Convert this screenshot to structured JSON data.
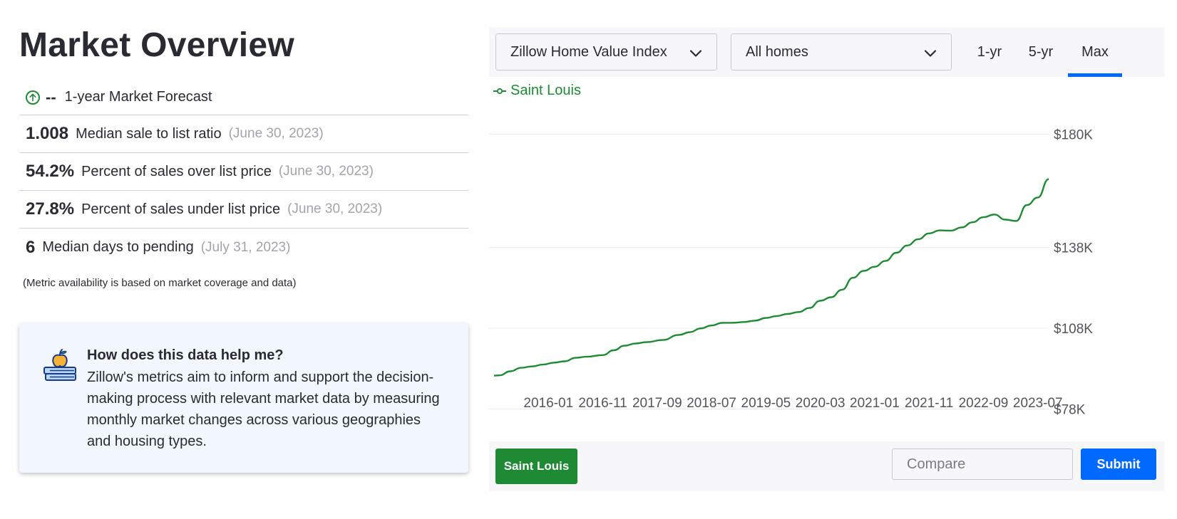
{
  "page": {
    "title": "Market Overview"
  },
  "forecast": {
    "value": "--",
    "label": "1-year Market Forecast"
  },
  "metrics": [
    {
      "value": "1.008",
      "label": "Median sale to list ratio",
      "date": "(June 30, 2023)"
    },
    {
      "value": "54.2%",
      "label": "Percent of sales over list price",
      "date": "(June 30, 2023)"
    },
    {
      "value": "27.8%",
      "label": "Percent of sales under list price",
      "date": "(June 30, 2023)"
    },
    {
      "value": "6",
      "label": "Median days to pending",
      "date": "(July 31, 2023)"
    }
  ],
  "note": "(Metric availability is based on market coverage and data)",
  "help": {
    "title": "How does this data help me?",
    "body": "Zillow's metrics aim to inform and support the decision-making process with relevant market data by measuring monthly market changes across various geographies and housing types."
  },
  "controls": {
    "index_select": "Zillow Home Value Index",
    "home_type_select": "All homes",
    "ranges": [
      "1-yr",
      "5-yr",
      "Max"
    ],
    "active_range": "Max"
  },
  "compare": {
    "region_chip": "Saint Louis",
    "placeholder": "Compare",
    "submit_label": "Submit"
  },
  "colors": {
    "series": "#1e8a34",
    "accent": "#006aff"
  },
  "chart_data": {
    "type": "line",
    "series": [
      {
        "name": "Saint Louis",
        "color": "#1e8a34",
        "points": [
          [
            "2015-03",
            90.4
          ],
          [
            "2015-04",
            90.5
          ],
          [
            "2015-06",
            92.0
          ],
          [
            "2015-08",
            93.3
          ],
          [
            "2015-10",
            93.8
          ],
          [
            "2015-12",
            94.5
          ],
          [
            "2016-02",
            95.2
          ],
          [
            "2016-04",
            95.7
          ],
          [
            "2016-06",
            97.0
          ],
          [
            "2016-08",
            97.4
          ],
          [
            "2016-11",
            98.0
          ],
          [
            "2017-01",
            99.8
          ],
          [
            "2017-03",
            101.5
          ],
          [
            "2017-05",
            102.3
          ],
          [
            "2017-07",
            102.8
          ],
          [
            "2017-10",
            103.6
          ],
          [
            "2018-01",
            105.5
          ],
          [
            "2018-03",
            106.5
          ],
          [
            "2018-05",
            107.9
          ],
          [
            "2018-07",
            109.0
          ],
          [
            "2018-09",
            110.0
          ],
          [
            "2018-11",
            110.0
          ],
          [
            "2019-01",
            110.3
          ],
          [
            "2019-03",
            110.8
          ],
          [
            "2019-05",
            111.8
          ],
          [
            "2019-07",
            112.5
          ],
          [
            "2019-09",
            113.3
          ],
          [
            "2019-11",
            114.0
          ],
          [
            "2020-01",
            115.5
          ],
          [
            "2020-03",
            118.2
          ],
          [
            "2020-05",
            119.5
          ],
          [
            "2020-07",
            122.3
          ],
          [
            "2020-09",
            126.7
          ],
          [
            "2020-11",
            129.3
          ],
          [
            "2021-01",
            130.8
          ],
          [
            "2021-03",
            133.0
          ],
          [
            "2021-05",
            136.0
          ],
          [
            "2021-07",
            138.7
          ],
          [
            "2021-09",
            141.0
          ],
          [
            "2021-11",
            143.2
          ],
          [
            "2022-01",
            144.3
          ],
          [
            "2022-03",
            144.2
          ],
          [
            "2022-05",
            145.4
          ],
          [
            "2022-07",
            147.3
          ],
          [
            "2022-09",
            149.2
          ],
          [
            "2022-11",
            150.2
          ],
          [
            "2023-01",
            148.3
          ],
          [
            "2023-03",
            147.8
          ],
          [
            "2023-05",
            153.7
          ],
          [
            "2023-07",
            156.5
          ],
          [
            "2023-09",
            163.3
          ]
        ]
      }
    ],
    "x_ticks": [
      "2016-01",
      "2016-11",
      "2017-09",
      "2018-07",
      "2019-05",
      "2020-03",
      "2021-01",
      "2021-11",
      "2022-09",
      "2023-07"
    ],
    "y_ticks": [
      {
        "value": 78,
        "label": "$78K"
      },
      {
        "value": 108,
        "label": "$108K"
      },
      {
        "value": 138,
        "label": "$138K"
      },
      {
        "value": 180,
        "label": "$180K"
      }
    ],
    "xlim": [
      "2015-03",
      "2023-09"
    ],
    "ylim": [
      78,
      180
    ],
    "grid": true,
    "legend": "top-left"
  }
}
